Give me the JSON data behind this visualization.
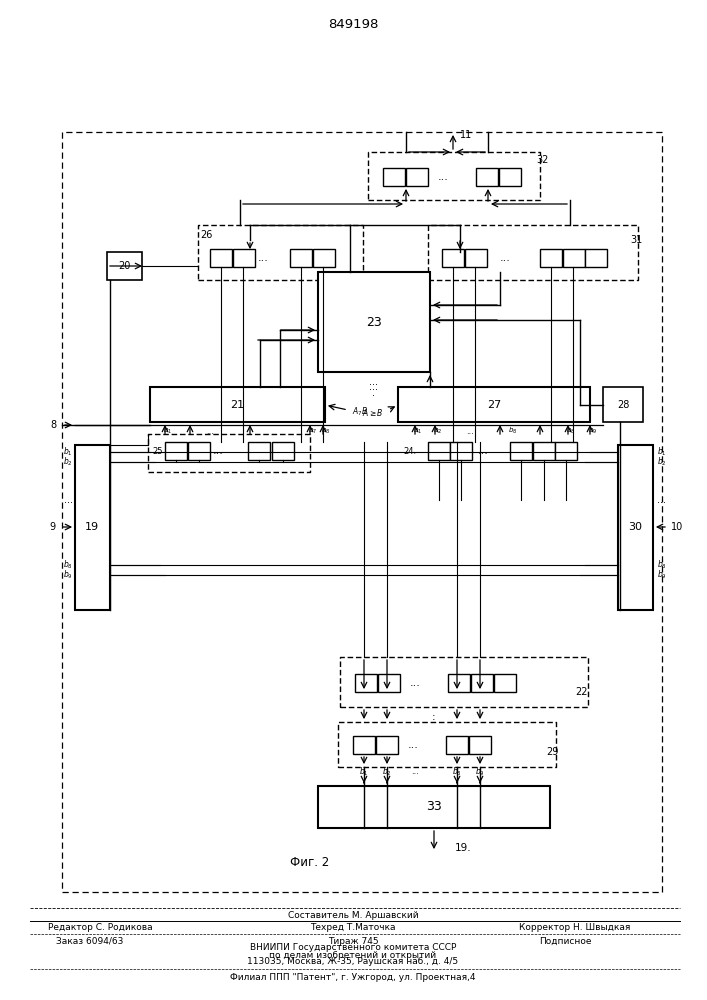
{
  "patent_number": "849198",
  "fig_label": "Фиг. 2",
  "output_arrow_label": "19.",
  "signal_8": "8",
  "signal_9": "9",
  "signal_10": "10",
  "signal_11": "11",
  "footer": {
    "sestavitel": "Составитель М. Аршавский",
    "redaktor": "Редактор С. Родикова",
    "tehred": "Техред Т.Маточка",
    "korrektor": "Корректор Н. Швыдкая",
    "zakaz": "Заказ 6094/63",
    "tirazh": "Тираж 745",
    "podpisnoe": "Подписное",
    "vniip1": "ВНИИПИ Государственного комитета СССР",
    "vniip2": "по делам изобретений и открытий",
    "vniip3": "113035, Москва, Ж-35, Раушская наб., д. 4/5",
    "filial": "Филиал ППП \"Патент\", г. Ужгород, ул. Проектная,4"
  }
}
